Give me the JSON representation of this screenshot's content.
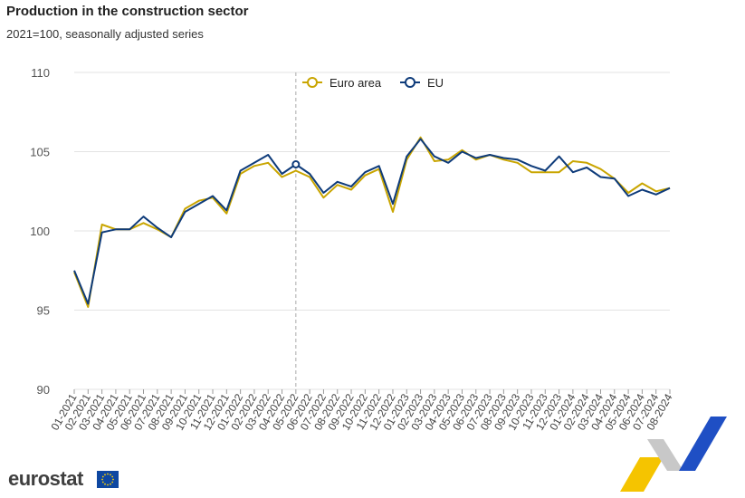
{
  "header": {
    "title": "Production in the construction sector",
    "subtitle": "2021=100, seasonally adjusted series"
  },
  "branding": {
    "logo_text": "eurostat"
  },
  "chart_data": {
    "type": "line",
    "categories": [
      "01-2021",
      "02-2021",
      "03-2021",
      "04-2021",
      "05-2021",
      "06-2021",
      "07-2021",
      "08-2021",
      "09-2021",
      "10-2021",
      "11-2021",
      "12-2021",
      "01-2022",
      "02-2022",
      "03-2022",
      "04-2022",
      "05-2022",
      "06-2022",
      "07-2022",
      "08-2022",
      "09-2022",
      "10-2022",
      "11-2022",
      "12-2022",
      "01-2023",
      "02-2023",
      "03-2023",
      "04-2023",
      "05-2023",
      "06-2023",
      "07-2023",
      "08-2023",
      "09-2023",
      "10-2023",
      "11-2023",
      "12-2023",
      "01-2024",
      "02-2024",
      "03-2024",
      "04-2024",
      "05-2024",
      "06-2024",
      "07-2024",
      "08-2024"
    ],
    "series": [
      {
        "name": "Euro area",
        "color": "#c9a500",
        "values": [
          97.4,
          95.2,
          100.4,
          100.1,
          100.1,
          100.5,
          100.1,
          99.6,
          101.4,
          101.9,
          102.1,
          101.1,
          103.6,
          104.1,
          104.3,
          103.4,
          103.8,
          103.4,
          102.1,
          102.9,
          102.6,
          103.5,
          103.9,
          101.2,
          104.5,
          105.9,
          104.4,
          104.5,
          105.1,
          104.5,
          104.8,
          104.5,
          104.3,
          103.7,
          103.7,
          103.7,
          104.4,
          104.3,
          103.9,
          103.3,
          102.4,
          103.0,
          102.5,
          102.7
        ]
      },
      {
        "name": "EU",
        "color": "#0e3b7a",
        "values": [
          97.5,
          95.4,
          99.9,
          100.1,
          100.1,
          100.9,
          100.2,
          99.6,
          101.2,
          101.7,
          102.2,
          101.3,
          103.8,
          104.3,
          104.8,
          103.6,
          104.2,
          103.6,
          102.4,
          103.1,
          102.8,
          103.7,
          104.1,
          101.7,
          104.7,
          105.8,
          104.7,
          104.3,
          105.0,
          104.6,
          104.8,
          104.6,
          104.5,
          104.1,
          103.8,
          104.7,
          103.7,
          104.0,
          103.4,
          103.3,
          102.2,
          102.6,
          102.3,
          102.7
        ]
      }
    ],
    "ylim": [
      90,
      110
    ],
    "yticks": [
      90,
      95,
      100,
      105,
      110
    ],
    "grid": true,
    "legend_position": "top",
    "highlight_category": "05-2022",
    "highlight_series": "EU"
  }
}
